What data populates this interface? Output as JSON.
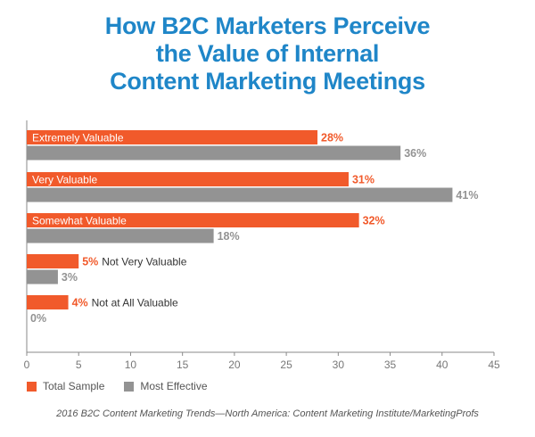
{
  "title_lines": [
    "How B2C Marketers Perceive",
    "the Value of Internal",
    "Content Marketing Meetings"
  ],
  "colors": {
    "total": "#f15a2b",
    "effective": "#939393",
    "title": "#1f86c8"
  },
  "chart_data": {
    "type": "bar",
    "orientation": "horizontal",
    "categories": [
      "Extremely Valuable",
      "Very Valuable",
      "Somewhat Valuable",
      "Not Very Valuable",
      "Not at All Valuable"
    ],
    "series": [
      {
        "name": "Total Sample",
        "values": [
          28,
          31,
          32,
          5,
          4
        ],
        "labels": [
          "28%",
          "31%",
          "32%",
          "5%",
          "4%"
        ]
      },
      {
        "name": "Most Effective",
        "values": [
          36,
          41,
          18,
          3,
          0
        ],
        "labels": [
          "36%",
          "41%",
          "18%",
          "3%",
          "0%"
        ]
      }
    ],
    "xlim": [
      0,
      45
    ],
    "xticks": [
      0,
      5,
      10,
      15,
      20,
      25,
      30,
      35,
      40,
      45
    ],
    "grid": false,
    "legend_position": "bottom-left"
  },
  "legend": {
    "total": "Total Sample",
    "effective": "Most Effective"
  },
  "source": "2016 B2C Content Marketing Trends—North America: Content Marketing Institute/MarketingProfs"
}
